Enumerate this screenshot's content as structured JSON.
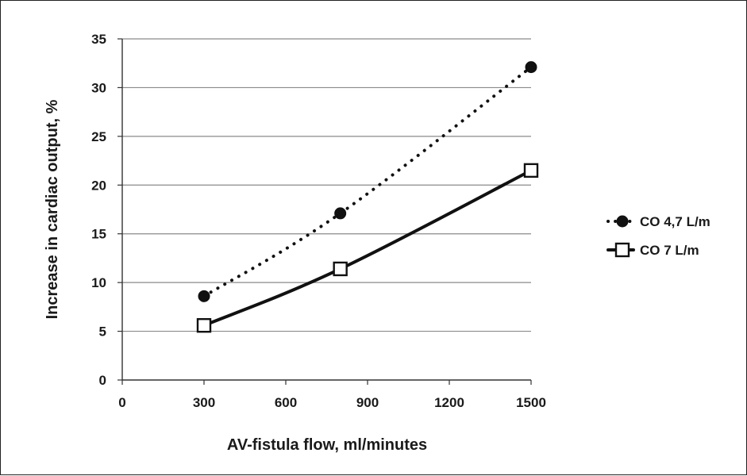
{
  "chart_data": {
    "type": "line",
    "xlabel": "AV-fistula flow, ml/minutes",
    "ylabel": "Increase in cardiac output, %",
    "xlim": [
      0,
      1500
    ],
    "ylim": [
      0,
      35
    ],
    "x_ticks": [
      0,
      300,
      600,
      900,
      1200,
      1500
    ],
    "y_ticks": [
      0,
      5,
      10,
      15,
      20,
      25,
      30,
      35
    ],
    "grid": "horizontal",
    "legend_position": "right",
    "series": [
      {
        "name": "CO 4,7 L/m",
        "style": "dotted",
        "marker": "filled-circle",
        "color": "#111111",
        "x": [
          300,
          800,
          1500
        ],
        "y": [
          8.6,
          17.1,
          32.1
        ]
      },
      {
        "name": "CO 7 L/m",
        "style": "solid",
        "marker": "open-square",
        "color": "#111111",
        "x": [
          300,
          800,
          1500
        ],
        "y": [
          5.6,
          11.4,
          21.5
        ]
      }
    ]
  }
}
